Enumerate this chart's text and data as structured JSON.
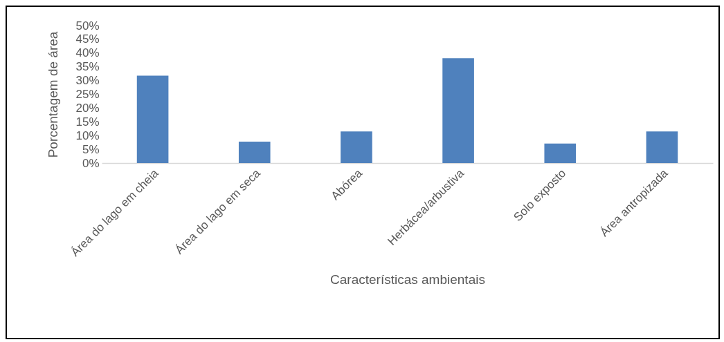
{
  "chart_data": {
    "type": "bar",
    "categories": [
      "Área do lago em cheia",
      "Área do lago em seca",
      "Abórea",
      "Herbácea/arbustiva",
      "Solo exposto",
      "Área antropizada"
    ],
    "values": [
      31.8,
      7.8,
      11.5,
      38.1,
      7.1,
      11.5
    ],
    "color": "#4f81bd",
    "xlabel": "Características ambientais",
    "ylabel": "Porcentagem de área",
    "ylim": [
      0,
      50
    ],
    "yticks": [
      {
        "value": 0,
        "label": "0%"
      },
      {
        "value": 5,
        "label": "5%"
      },
      {
        "value": 10,
        "label": "10%"
      },
      {
        "value": 15,
        "label": "15%"
      },
      {
        "value": 20,
        "label": "20%"
      },
      {
        "value": 25,
        "label": "25%"
      },
      {
        "value": 30,
        "label": "30%"
      },
      {
        "value": 35,
        "label": "35%"
      },
      {
        "value": 40,
        "label": "40%"
      },
      {
        "value": 45,
        "label": "45%"
      },
      {
        "value": 50,
        "label": "50%"
      }
    ],
    "grid": false
  }
}
